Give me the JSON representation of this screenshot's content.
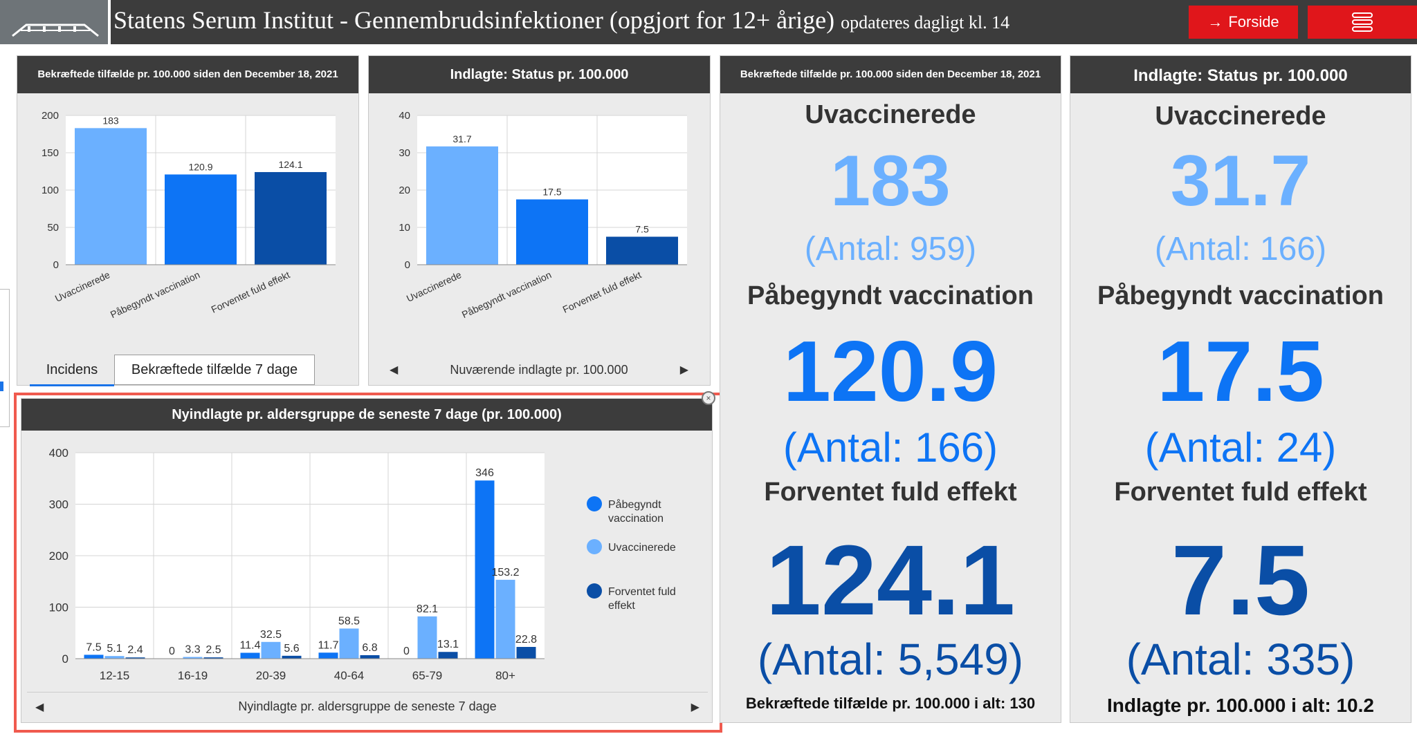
{
  "header": {
    "title": "Statens Serum Institut - Gennembrudsinfektioner (opgjort for 12+ årige)",
    "subtitle": "opdateres dagligt kl. 14",
    "forside_label": "Forside"
  },
  "colors": {
    "unvax": "#6bb0ff",
    "partial": "#0d74f5",
    "full": "#0a4ea6",
    "header": "#3c3c3c",
    "accent": "#e0161b"
  },
  "panel1": {
    "title": "Bekræftede tilfælde pr. 100.000 siden den December 18, 2021",
    "tab_active": "Incidens",
    "tab_inactive": "Bekræftede tilfælde 7 dage"
  },
  "panel2": {
    "title": "Indlagte: Status pr. 100.000",
    "footer": "Nuværende indlagte pr. 100.000"
  },
  "panel3": {
    "title": "Nyindlagte pr. aldersgruppe de seneste 7 dage (pr. 100.000)",
    "footer": "Nyindlagte pr. aldersgruppe de seneste 7 dage"
  },
  "panel4": {
    "title": "Bekræftede tilfælde pr. 100.000 siden den December 18, 2021",
    "label1": "Uvaccinerede",
    "value1": "183",
    "count1": "(Antal: 959)",
    "label2": "Påbegyndt vaccination",
    "value2": "120.9",
    "count2": "(Antal: 166)",
    "label3": "Forventet fuld effekt",
    "value3": "124.1",
    "count3": "(Antal: 5,549)",
    "footer": "Bekræftede tilfælde pr. 100.000 i alt: 130"
  },
  "panel5": {
    "title": "Indlagte: Status pr. 100.000",
    "label1": "Uvaccinerede",
    "value1": "31.7",
    "count1": "(Antal: 166)",
    "label2": "Påbegyndt vaccination",
    "value2": "17.5",
    "count2": "(Antal: 24)",
    "label3": "Forventet fuld effekt",
    "value3": "7.5",
    "count3": "(Antal: 335)",
    "footer": "Indlagte pr. 100.000 i alt: 10.2"
  },
  "chart_data": [
    {
      "type": "bar",
      "title": "Bekræftede tilfælde pr. 100.000 siden den December 18, 2021",
      "categories": [
        "Uvaccinerede",
        "Påbegyndt vaccination",
        "Forventet fuld effekt"
      ],
      "values": [
        183,
        120.9,
        124.1
      ],
      "data_labels": [
        "183",
        "120.9",
        "124.1"
      ],
      "ylim": [
        0,
        200
      ],
      "yticks": [
        0,
        50,
        100,
        150,
        200
      ],
      "grid": true
    },
    {
      "type": "bar",
      "title": "Indlagte: Status pr. 100.000",
      "categories": [
        "Uvaccinerede",
        "Påbegyndt vaccination",
        "Forventet fuld effekt"
      ],
      "values": [
        31.7,
        17.5,
        7.5
      ],
      "data_labels": [
        "31.7",
        "17.5",
        "7.5"
      ],
      "ylim": [
        0,
        40
      ],
      "yticks": [
        0,
        10,
        20,
        30,
        40
      ],
      "grid": true
    },
    {
      "type": "bar",
      "title": "Nyindlagte pr. aldersgruppe de seneste 7 dage (pr. 100.000)",
      "categories": [
        "12-15",
        "16-19",
        "20-39",
        "40-64",
        "65-79",
        "80+"
      ],
      "series": [
        {
          "name": "Påbegyndt vaccination",
          "values": [
            7.5,
            0,
            11.4,
            11.7,
            0,
            346
          ],
          "labels": [
            "7.5",
            "0",
            "11.4",
            "11.7",
            "0",
            "346"
          ]
        },
        {
          "name": "Uvaccinerede",
          "values": [
            5.1,
            3.3,
            32.5,
            58.5,
            82.1,
            153.2
          ],
          "labels": [
            "5.1",
            "3.3",
            "32.5",
            "58.5",
            "82.1",
            "153.2"
          ]
        },
        {
          "name": "Forventet fuld effekt",
          "values": [
            2.4,
            2.5,
            5.6,
            6.8,
            13.1,
            22.8
          ],
          "labels": [
            "2.4",
            "2.5",
            "5.6",
            "6.8",
            "13.1",
            "22.8"
          ]
        }
      ],
      "legend_lines": [
        [
          "Påbegyndt",
          "vaccination"
        ],
        [
          "Uvaccinerede"
        ],
        [
          "Forventet fuld",
          "effekt"
        ]
      ],
      "ylim": [
        0,
        400
      ],
      "yticks": [
        0,
        100,
        200,
        300,
        400
      ],
      "grid": true,
      "legend": "right"
    }
  ]
}
